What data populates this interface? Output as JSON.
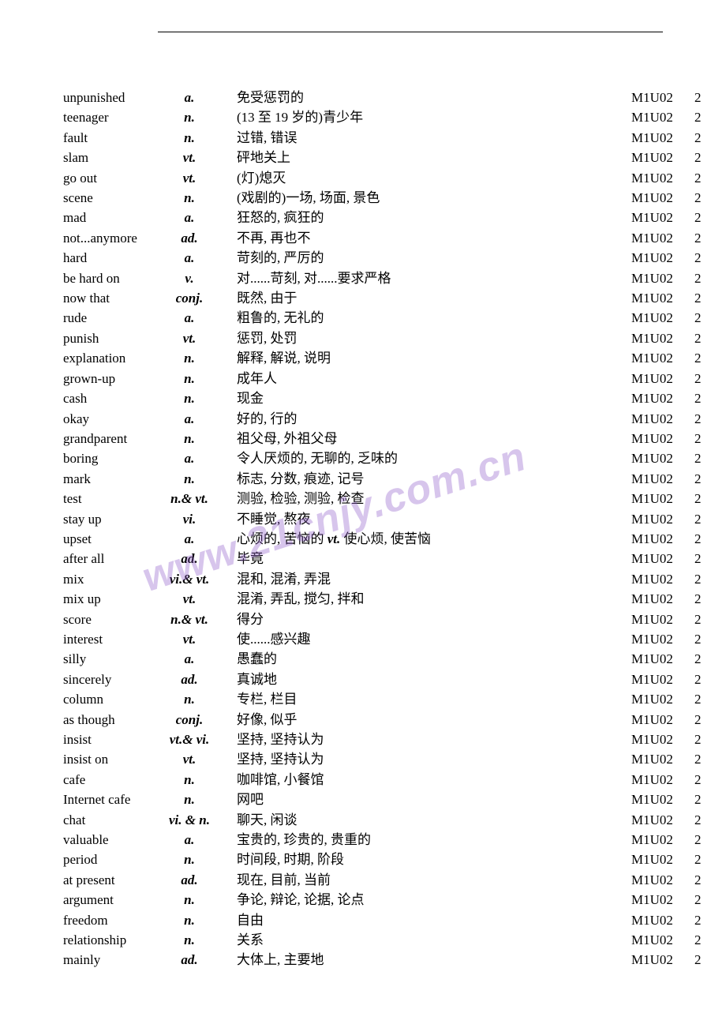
{
  "watermark": "www.21cnjy.com.cn",
  "columns": [
    "word",
    "pos",
    "definition",
    "unit",
    "num"
  ],
  "rows": [
    {
      "word": "unpunished",
      "pos": "a.",
      "def": "免受惩罚的",
      "unit": "M1U02",
      "num": "2"
    },
    {
      "word": "teenager",
      "pos": "n.",
      "def": "(13 至 19 岁的)青少年",
      "unit": "M1U02",
      "num": "2"
    },
    {
      "word": "fault",
      "pos": "n.",
      "def": "过错, 错误",
      "unit": "M1U02",
      "num": "2"
    },
    {
      "word": "slam",
      "pos": "vt.",
      "def": "砰地关上",
      "unit": "M1U02",
      "num": "2"
    },
    {
      "word": "go out",
      "pos": "vt.",
      "def": "(灯)熄灭",
      "unit": "M1U02",
      "num": "2"
    },
    {
      "word": "scene",
      "pos": "n.",
      "def": "(戏剧的)一场, 场面, 景色",
      "unit": "M1U02",
      "num": "2"
    },
    {
      "word": "mad",
      "pos": "a.",
      "def": "狂怒的,  疯狂的",
      "unit": "M1U02",
      "num": "2"
    },
    {
      "word": "not...anymore",
      "pos": "ad.",
      "def": "不再, 再也不",
      "unit": "M1U02",
      "num": "2"
    },
    {
      "word": "hard",
      "pos": "a.",
      "def": "苛刻的, 严厉的",
      "unit": "M1U02",
      "num": "2"
    },
    {
      "word": "be hard on",
      "pos": "v.",
      "def": "对......苛刻, 对......要求严格",
      "unit": "M1U02",
      "num": "2"
    },
    {
      "word": "now that",
      "pos": "conj.",
      "def": "既然, 由于",
      "unit": "M1U02",
      "num": "2"
    },
    {
      "word": "rude",
      "pos": "a.",
      "def": "粗鲁的, 无礼的",
      "unit": "M1U02",
      "num": "2"
    },
    {
      "word": "punish",
      "pos": "vt.",
      "def": "惩罚, 处罚",
      "unit": "M1U02",
      "num": "2"
    },
    {
      "word": "explanation",
      "pos": "n.",
      "def": "解释, 解说, 说明",
      "unit": "M1U02",
      "num": "2"
    },
    {
      "word": "grown-up",
      "pos": "n.",
      "def": "成年人",
      "unit": "M1U02",
      "num": "2"
    },
    {
      "word": "cash",
      "pos": "n.",
      "def": "现金",
      "unit": "M1U02",
      "num": "2"
    },
    {
      "word": "okay",
      "pos": "a.",
      "def": "好的, 行的",
      "unit": "M1U02",
      "num": "2"
    },
    {
      "word": "grandparent",
      "pos": "n.",
      "def": "祖父母, 外祖父母",
      "unit": "M1U02",
      "num": "2"
    },
    {
      "word": "boring",
      "pos": "a.",
      "def": "令人厌烦的, 无聊的, 乏味的",
      "unit": "M1U02",
      "num": "2"
    },
    {
      "word": "mark",
      "pos": "n.",
      "def": "标志, 分数, 痕迹, 记号",
      "unit": "M1U02",
      "num": "2"
    },
    {
      "word": "test",
      "pos": "n.& vt.",
      "def": "测验, 检验, 测验, 检查",
      "unit": "M1U02",
      "num": "2"
    },
    {
      "word": "stay up",
      "pos": "vi.",
      "def": "不睡觉, 熬夜",
      "unit": "M1U02",
      "num": "2"
    },
    {
      "word": "upset",
      "pos": "a.",
      "def": "心烦的, 苦恼的  <span class=\"inline-pos\">vt.</span> 使心烦,  使苦恼",
      "unit": "M1U02",
      "num": "2"
    },
    {
      "word": "after all",
      "pos": "ad.",
      "def": "毕竟",
      "unit": "M1U02",
      "num": "2"
    },
    {
      "word": "mix",
      "pos": "vi.& vt.",
      "def": "混和, 混淆, 弄混",
      "unit": "M1U02",
      "num": "2"
    },
    {
      "word": "mix up",
      "pos": "vt.",
      "def": "混淆, 弄乱, 搅匀,  拌和",
      "unit": "M1U02",
      "num": "2"
    },
    {
      "word": "score",
      "pos": "n.& vt.",
      "def": "得分",
      "unit": "M1U02",
      "num": "2"
    },
    {
      "word": "interest",
      "pos": "vt.",
      "def": "使......感兴趣",
      "unit": "M1U02",
      "num": "2"
    },
    {
      "word": "silly",
      "pos": "a.",
      "def": "愚蠢的",
      "unit": "M1U02",
      "num": "2"
    },
    {
      "word": "sincerely",
      "pos": "ad.",
      "def": "真诚地",
      "unit": "M1U02",
      "num": "2"
    },
    {
      "word": "column",
      "pos": "n.",
      "def": "专栏, 栏目",
      "unit": "M1U02",
      "num": "2"
    },
    {
      "word": "as though",
      "pos": "conj.",
      "def": "好像,  似乎",
      "unit": "M1U02",
      "num": "2"
    },
    {
      "word": "insist",
      "pos": "vt.& vi.",
      "def": "坚持, 坚持认为",
      "unit": "M1U02",
      "num": "2"
    },
    {
      "word": "insist on",
      "pos": "vt.",
      "def": "坚持, 坚持认为",
      "unit": "M1U02",
      "num": "2"
    },
    {
      "word": "cafe",
      "pos": "n.",
      "def": "咖啡馆, 小餐馆",
      "unit": "M1U02",
      "num": "2"
    },
    {
      "word": "Internet cafe",
      "pos": "n.",
      "def": "网吧",
      "unit": "M1U02",
      "num": "2"
    },
    {
      "word": "chat",
      "pos": "vi. & n.",
      "def": "聊天, 闲谈",
      "unit": "M1U02",
      "num": "2"
    },
    {
      "word": "valuable",
      "pos": "a.",
      "def": "宝贵的, 珍贵的,  贵重的",
      "unit": "M1U02",
      "num": "2"
    },
    {
      "word": "period",
      "pos": "n.",
      "def": "时间段, 时期,  阶段",
      "unit": "M1U02",
      "num": "2"
    },
    {
      "word": "at present",
      "pos": "ad.",
      "def": "现在, 目前, 当前",
      "unit": "M1U02",
      "num": "2"
    },
    {
      "word": "argument",
      "pos": "n.",
      "def": "争论, 辩论, 论据, 论点",
      "unit": "M1U02",
      "num": "2"
    },
    {
      "word": "freedom",
      "pos": "n.",
      "def": "自由",
      "unit": "M1U02",
      "num": "2"
    },
    {
      "word": "relationship",
      "pos": "n.",
      "def": "关系",
      "unit": "M1U02",
      "num": "2"
    },
    {
      "word": "mainly",
      "pos": "ad.",
      "def": "大体上, 主要地",
      "unit": "M1U02",
      "num": "2"
    }
  ]
}
